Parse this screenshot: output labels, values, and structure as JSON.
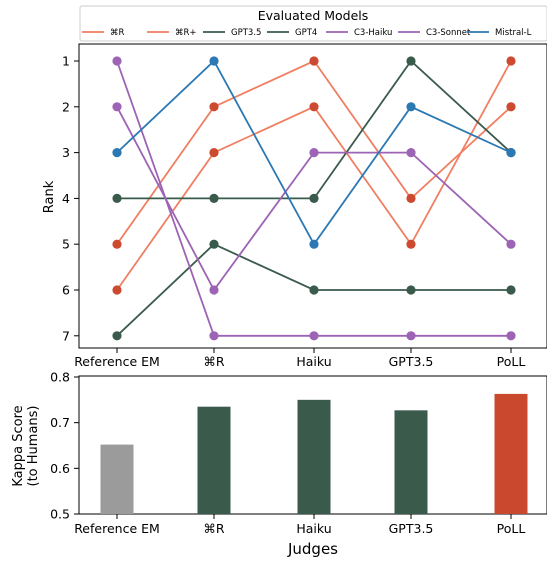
{
  "chart_data": [
    {
      "type": "line",
      "ylabel": "Rank",
      "x": [
        "Reference EM",
        "⌘R",
        "Haiku",
        "GPT3.5",
        "PoLL"
      ],
      "yticks": [
        1,
        2,
        3,
        4,
        5,
        6,
        7
      ],
      "y_inverted": true,
      "ylim": [
        7,
        1
      ],
      "legend": {
        "title": "Evaluated Models",
        "placement": "top",
        "entries": [
          "⌘R",
          "⌘R+",
          "GPT3.5",
          "GPT4",
          "C3-Haiku",
          "C3-Sonnet",
          "Mistral-L"
        ]
      },
      "series": [
        {
          "name": "⌘R",
          "color": "#f07f62",
          "marker_color": "#cc4a2f",
          "values": [
            5,
            2,
            1,
            4,
            2
          ]
        },
        {
          "name": "⌘R+",
          "color": "#f07f62",
          "marker_color": "#cc4a2f",
          "values": [
            6,
            3,
            2,
            5,
            1
          ]
        },
        {
          "name": "GPT3.5",
          "color": "#3a5a4c",
          "marker_color": "#3a5a4c",
          "values": [
            4,
            4,
            4,
            1,
            3
          ]
        },
        {
          "name": "GPT4",
          "color": "#3a5a4c",
          "marker_color": "#3a5a4c",
          "values": [
            7,
            5,
            6,
            6,
            6
          ]
        },
        {
          "name": "C3-Haiku",
          "color": "#9d63b4",
          "marker_color": "#9d63b4",
          "values": [
            2,
            6,
            3,
            3,
            5
          ]
        },
        {
          "name": "C3-Sonnet",
          "color": "#9d63b4",
          "marker_color": "#9d63b4",
          "values": [
            1,
            7,
            7,
            7,
            7
          ]
        },
        {
          "name": "Mistral-L",
          "color": "#2b78b3",
          "marker_color": "#2b78b3",
          "values": [
            3,
            1,
            5,
            2,
            3
          ]
        }
      ]
    },
    {
      "type": "bar",
      "xlabel": "Judges",
      "ylabel_lines": [
        "Kappa Score",
        "(to Humans)"
      ],
      "categories": [
        "Reference EM",
        "⌘R",
        "Haiku",
        "GPT3.5",
        "PoLL"
      ],
      "values": [
        0.652,
        0.735,
        0.75,
        0.727,
        0.763
      ],
      "colors": [
        "#9b9b9b",
        "#3a5a4c",
        "#3a5a4c",
        "#3a5a4c",
        "#c9482e"
      ],
      "ylim": [
        0.5,
        0.8
      ],
      "yticks": [
        "0.5",
        "0.6",
        "0.7",
        "0.8"
      ]
    }
  ]
}
